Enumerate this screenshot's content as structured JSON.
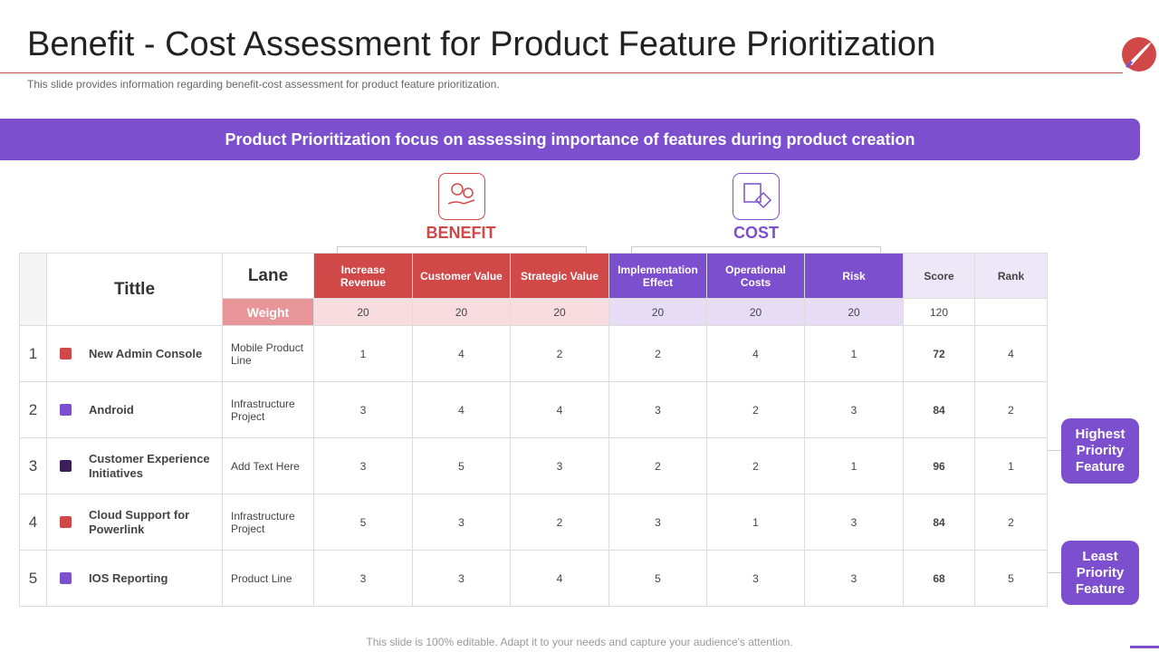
{
  "header": {
    "title": "Benefit - Cost Assessment for Product Feature Prioritization",
    "subtitle": "This slide provides information regarding benefit-cost assessment for product feature prioritization."
  },
  "banner": "Product Prioritization focus on assessing importance of features during product creation",
  "groups": [
    "BENEFIT",
    "COST"
  ],
  "table": {
    "title_header": "Tittle",
    "lane_header": "Lane",
    "weight_label": "Weight",
    "columns": [
      "Increase Revenue",
      "Customer Value",
      "Strategic Value",
      "Implementation Effect",
      "Operational Costs",
      "Risk"
    ],
    "score_header": "Score",
    "rank_header": "Rank",
    "weights": [
      20,
      20,
      20,
      20,
      20,
      20
    ],
    "weight_total": 120,
    "rows": [
      {
        "index": 1,
        "title": "New Admin Console",
        "lane": "Mobile Product Line",
        "values": [
          1,
          4,
          2,
          2,
          4,
          1
        ],
        "score": 72,
        "rank": 4
      },
      {
        "index": 2,
        "title": "Android",
        "lane": "Infrastructure Project",
        "values": [
          3,
          4,
          4,
          3,
          2,
          3
        ],
        "score": 84,
        "rank": 2
      },
      {
        "index": 3,
        "title": "Customer Experience Initiatives",
        "lane": "Add Text Here",
        "values": [
          3,
          5,
          3,
          2,
          2,
          1
        ],
        "score": 96,
        "rank": 1
      },
      {
        "index": 4,
        "title": "Cloud Support for Powerlink",
        "lane": "Infrastructure Project",
        "values": [
          5,
          3,
          2,
          3,
          1,
          3
        ],
        "score": 84,
        "rank": 2
      },
      {
        "index": 5,
        "title": "IOS Reporting",
        "lane": "Product Line",
        "values": [
          3,
          3,
          4,
          5,
          3,
          3
        ],
        "score": 68,
        "rank": 5
      }
    ]
  },
  "callouts": [
    "Highest Priority Feature",
    "Least Priority Feature"
  ],
  "footer": "This slide is 100% editable. Adapt it to your needs and capture your audience's attention."
}
